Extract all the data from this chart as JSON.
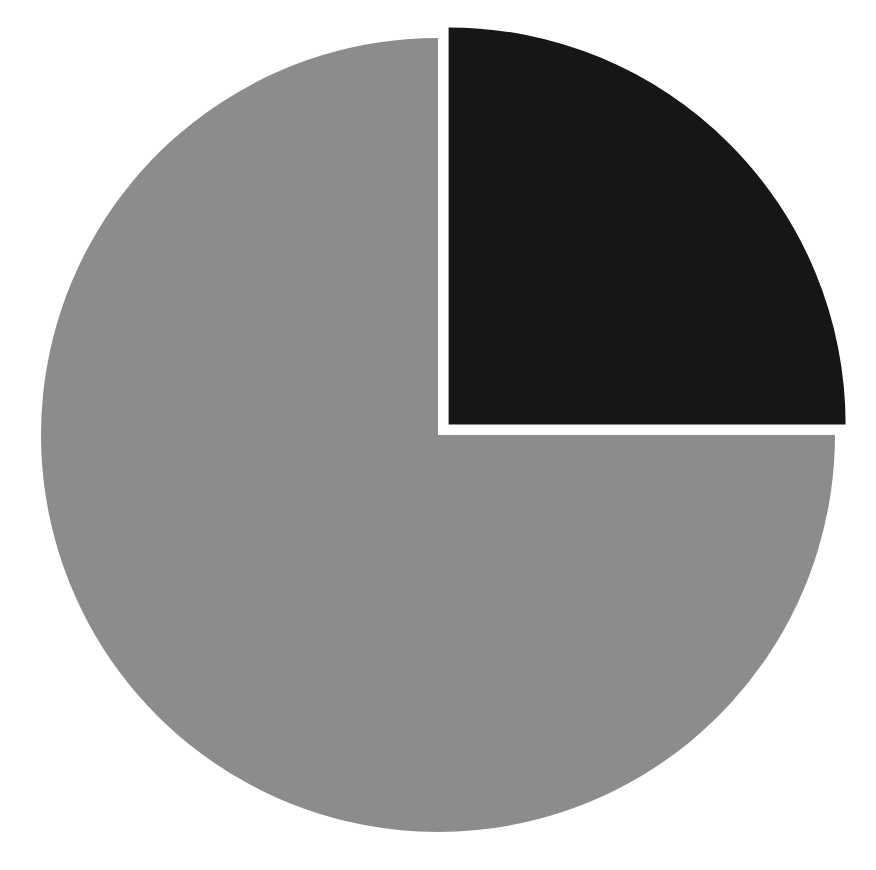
{
  "chart_data": {
    "type": "pie",
    "categories": [
      null,
      null
    ],
    "values": [
      25,
      75
    ],
    "colors": [
      "#161616",
      "#8c8c8c"
    ],
    "legend": false
  }
}
